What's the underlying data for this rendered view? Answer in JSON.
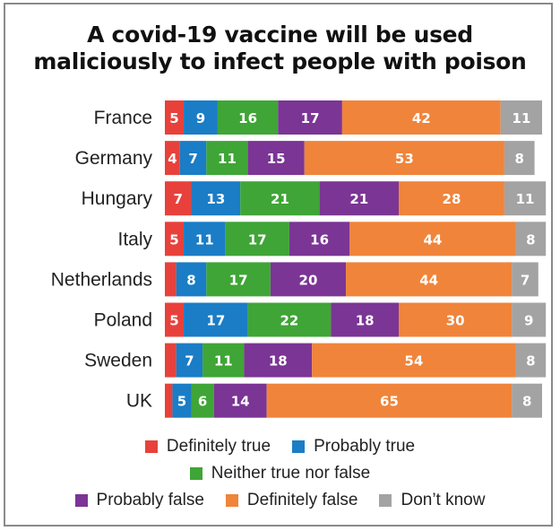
{
  "chart_data": {
    "type": "bar",
    "orientation": "horizontal",
    "stacked": true,
    "title": "A covid-19 vaccine will be used maliciously to infect people with poison",
    "title_lines": [
      "A covid-19 vaccine will be used",
      "maliciously to infect people with poison"
    ],
    "categories": [
      "France",
      "Germany",
      "Hungary",
      "Italy",
      "Netherlands",
      "Poland",
      "Sweden",
      "UK"
    ],
    "series": [
      {
        "name": "Definitely true",
        "color": "#e8413b",
        "values": [
          5,
          4,
          7,
          5,
          3,
          5,
          3,
          2
        ],
        "labels": [
          "5",
          "4",
          "7",
          "5",
          "",
          "5",
          "",
          ""
        ]
      },
      {
        "name": "Probably true",
        "color": "#1a7dc6",
        "values": [
          9,
          7,
          13,
          11,
          8,
          17,
          7,
          5
        ],
        "labels": [
          "9",
          "7",
          "13",
          "11",
          "8",
          "17",
          "7",
          "5"
        ]
      },
      {
        "name": "Neither true nor false",
        "color": "#3fa536",
        "values": [
          16,
          11,
          21,
          17,
          17,
          22,
          11,
          6
        ],
        "labels": [
          "16",
          "11",
          "21",
          "17",
          "17",
          "22",
          "11",
          "6"
        ]
      },
      {
        "name": "Probably false",
        "color": "#7b3595",
        "values": [
          17,
          15,
          21,
          16,
          20,
          18,
          18,
          14
        ],
        "labels": [
          "17",
          "15",
          "21",
          "16",
          "20",
          "18",
          "18",
          "14"
        ]
      },
      {
        "name": "Definitely false",
        "color": "#f0843a",
        "values": [
          42,
          53,
          28,
          44,
          44,
          30,
          54,
          65
        ],
        "labels": [
          "42",
          "53",
          "28",
          "44",
          "44",
          "30",
          "54",
          "65"
        ]
      },
      {
        "name": "Don’t know",
        "color": "#a3a3a3",
        "values": [
          11,
          8,
          11,
          8,
          7,
          9,
          8,
          8
        ],
        "labels": [
          "11",
          "8",
          "11",
          "8",
          "7",
          "9",
          "8",
          "8"
        ]
      }
    ],
    "legend_rows": [
      [
        0,
        1
      ],
      [
        2
      ],
      [
        3,
        4,
        5
      ]
    ],
    "xlim": [
      0,
      100
    ],
    "grid": false
  }
}
